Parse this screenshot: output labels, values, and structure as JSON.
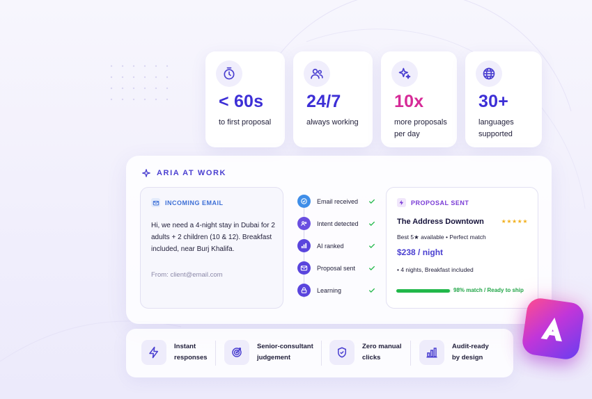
{
  "stats": [
    {
      "value": "< 60s",
      "label": "to first proposal",
      "icon": "clock-icon"
    },
    {
      "value": "24/7",
      "label": "always working",
      "icon": "users-icon"
    },
    {
      "value": "10x",
      "label": "more proposals per day",
      "icon": "sparkle-icon"
    },
    {
      "value": "30+",
      "label": "languages supported",
      "icon": "globe-icon"
    }
  ],
  "panel": {
    "title": "ARIA AT WORK",
    "email": {
      "heading": "INCOMING EMAIL",
      "body": "Hi, we need a 4-night stay in Dubai for 2 adults + 2 children (10 & 12). Breakfast included, near Burj Khalifa.",
      "from": "From: client@email.com"
    },
    "steps": [
      {
        "label": "Email received",
        "status": "done"
      },
      {
        "label": "Intent detected",
        "status": "done"
      },
      {
        "label": "AI ranked",
        "status": "done"
      },
      {
        "label": "Proposal sent",
        "status": "done"
      },
      {
        "label": "Learning",
        "status": "done"
      }
    ],
    "proposal": {
      "heading": "PROPOSAL SENT",
      "hotel": "The Address Downtown",
      "stars": "★★★★★",
      "rating_value": 5,
      "subtitle": "Best 5★ available • Perfect match",
      "price": "$238 / night",
      "details": "• 4 nights, Breakfast included",
      "match_text": "98% match / Ready to ship",
      "match_fraction": 0.98
    }
  },
  "features": [
    {
      "label": "Instant responses",
      "icon": "lightning-icon"
    },
    {
      "label": "Senior-consultant judgement",
      "icon": "target-icon"
    },
    {
      "label": "Zero manual clicks",
      "icon": "shield-check-icon"
    },
    {
      "label": "Audit-ready by design",
      "icon": "bar-chart-icon"
    }
  ],
  "colors": {
    "accent": "#4a3fd0",
    "pink": "#d62a97",
    "success": "#22b84a",
    "star": "#f2b01e"
  }
}
